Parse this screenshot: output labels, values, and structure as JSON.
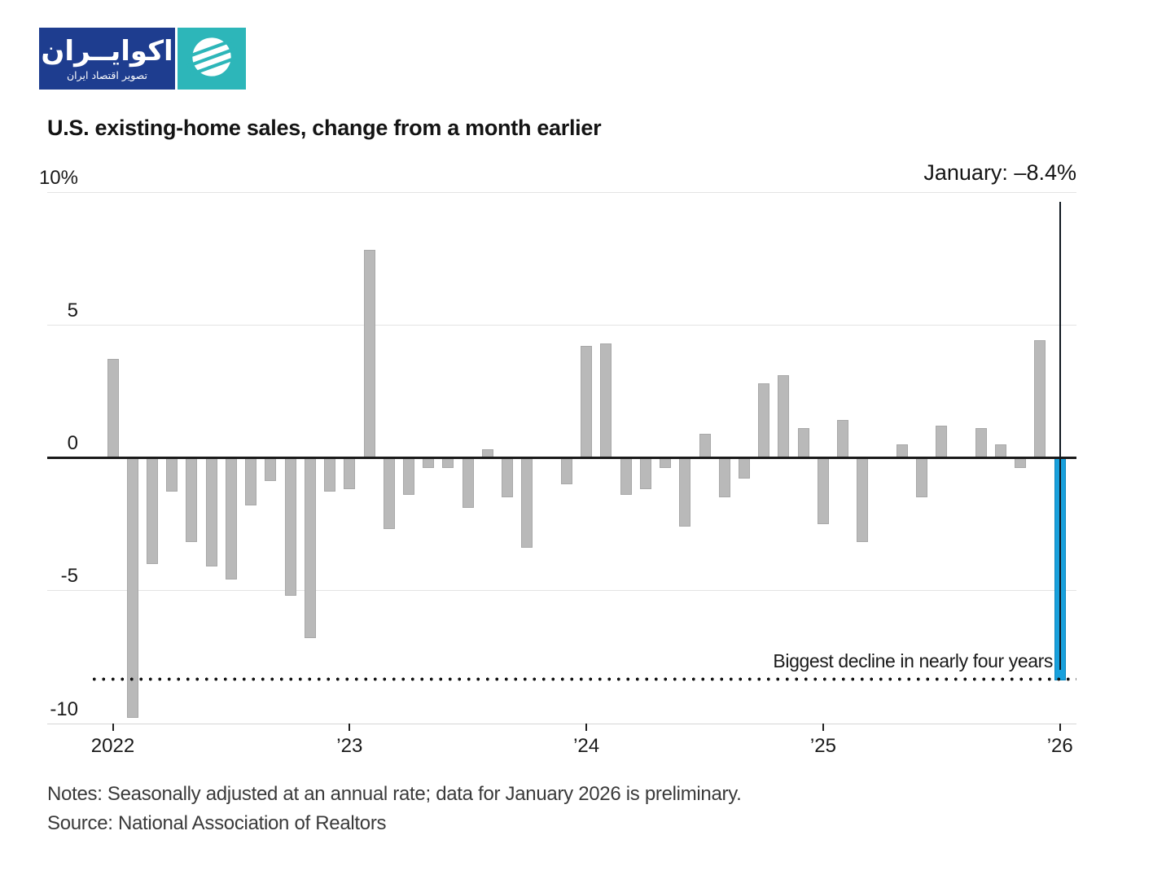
{
  "logo": {
    "brand": "اکوایــران",
    "tagline": "تصویر اقتصاد ایران",
    "navy_color": "#1e3d8f",
    "teal_color": "#2db6b9"
  },
  "header": {
    "title": "U.S. existing-home sales, change from a month earlier"
  },
  "callout": {
    "label": "January: –8.4%"
  },
  "annotation": {
    "text": "Biggest decline in nearly four years"
  },
  "footer": {
    "notes": "Notes: Seasonally adjusted at an annual rate; data for January 2026 is preliminary.",
    "source": "Source: National Association of Realtors"
  },
  "chart_data": {
    "type": "bar",
    "title": "U.S. existing-home sales, change from a month earlier",
    "x": [
      "Jan 2022",
      "Feb 2022",
      "Mar 2022",
      "Apr 2022",
      "May 2022",
      "Jun 2022",
      "Jul 2022",
      "Aug 2022",
      "Sep 2022",
      "Oct 2022",
      "Nov 2022",
      "Dec 2022",
      "Jan 2023",
      "Feb 2023",
      "Mar 2023",
      "Apr 2023",
      "May 2023",
      "Jun 2023",
      "Jul 2023",
      "Aug 2023",
      "Sep 2023",
      "Oct 2023",
      "Nov 2023",
      "Dec 2023",
      "Jan 2024",
      "Feb 2024",
      "Mar 2024",
      "Apr 2024",
      "May 2024",
      "Jun 2024",
      "Jul 2024",
      "Aug 2024",
      "Sep 2024",
      "Oct 2024",
      "Nov 2024",
      "Dec 2024",
      "Jan 2025",
      "Feb 2025",
      "Mar 2025",
      "Apr 2025",
      "May 2025",
      "Jun 2025",
      "Jul 2025",
      "Aug 2025",
      "Sep 2025",
      "Oct 2025",
      "Nov 2025",
      "Dec 2025",
      "Jan 2026"
    ],
    "values": [
      3.7,
      -9.8,
      -4.0,
      -1.3,
      -3.2,
      -4.1,
      -4.6,
      -1.8,
      -0.9,
      -5.2,
      -6.8,
      -1.3,
      -1.2,
      7.8,
      -2.7,
      -1.4,
      -0.4,
      -0.4,
      -1.9,
      0.3,
      -1.5,
      -3.4,
      0.0,
      -1.0,
      4.2,
      4.3,
      -1.4,
      -1.2,
      -0.4,
      -2.6,
      0.9,
      -1.5,
      -0.8,
      2.8,
      3.1,
      1.1,
      -2.5,
      1.4,
      -3.2,
      0.0,
      0.5,
      -1.5,
      1.2,
      0.0,
      1.1,
      0.5,
      -0.4,
      4.4,
      -8.4
    ],
    "unit": "%",
    "ylabel": "",
    "xlabel": "",
    "ylim": [
      -10,
      10
    ],
    "y_ticks": [
      10,
      5,
      0,
      -5,
      -10
    ],
    "y_tick_labels": [
      "10%",
      "5",
      "0",
      "-5",
      "-10"
    ],
    "x_tick_indices": [
      0,
      12,
      24,
      36,
      48
    ],
    "x_tick_labels": [
      "2022",
      "’23",
      "’24",
      "’25",
      "’26"
    ],
    "grid": true,
    "legend": false,
    "bar_color": "#b9b9b9",
    "highlight_index": 48,
    "highlight_color": "#18a0dc",
    "highlight_value_label": "January: –8.4%",
    "reference_line": {
      "value": -8.4,
      "style": "dotted",
      "label": "Biggest decline in nearly four years"
    }
  }
}
